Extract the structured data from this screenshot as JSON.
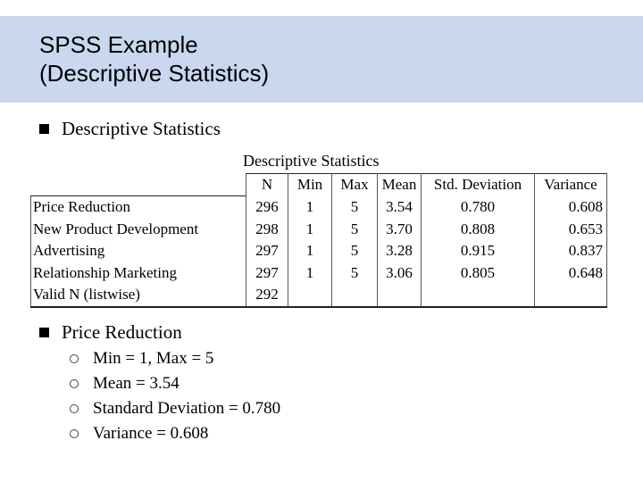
{
  "slide": {
    "title_line1": "SPSS Example",
    "title_line2": "(Descriptive Statistics)",
    "bullet1": "Descriptive Statistics",
    "bullet2": "Price Reduction",
    "sub_bullets": [
      "Min = 1, Max = 5",
      "Mean = 3.54",
      "Standard Deviation = 0.780",
      "Variance = 0.608"
    ]
  },
  "table": {
    "caption": "Descriptive Statistics",
    "headers": [
      "",
      "N",
      "Min",
      "Max",
      "Mean",
      "Std. Deviation",
      "Variance"
    ],
    "rows": [
      [
        "Price Reduction",
        "296",
        "1",
        "5",
        "3.54",
        "0.780",
        "0.608"
      ],
      [
        "New Product Development",
        "298",
        "1",
        "5",
        "3.70",
        "0.808",
        "0.653"
      ],
      [
        "Advertising",
        "297",
        "1",
        "5",
        "3.28",
        "0.915",
        "0.837"
      ],
      [
        "Relationship Marketing",
        "297",
        "1",
        "5",
        "3.06",
        "0.805",
        "0.648"
      ],
      [
        "Valid N (listwise)",
        "292",
        "",
        "",
        "",
        "",
        ""
      ]
    ]
  },
  "colors": {
    "title_band": "#c9d8ef"
  }
}
